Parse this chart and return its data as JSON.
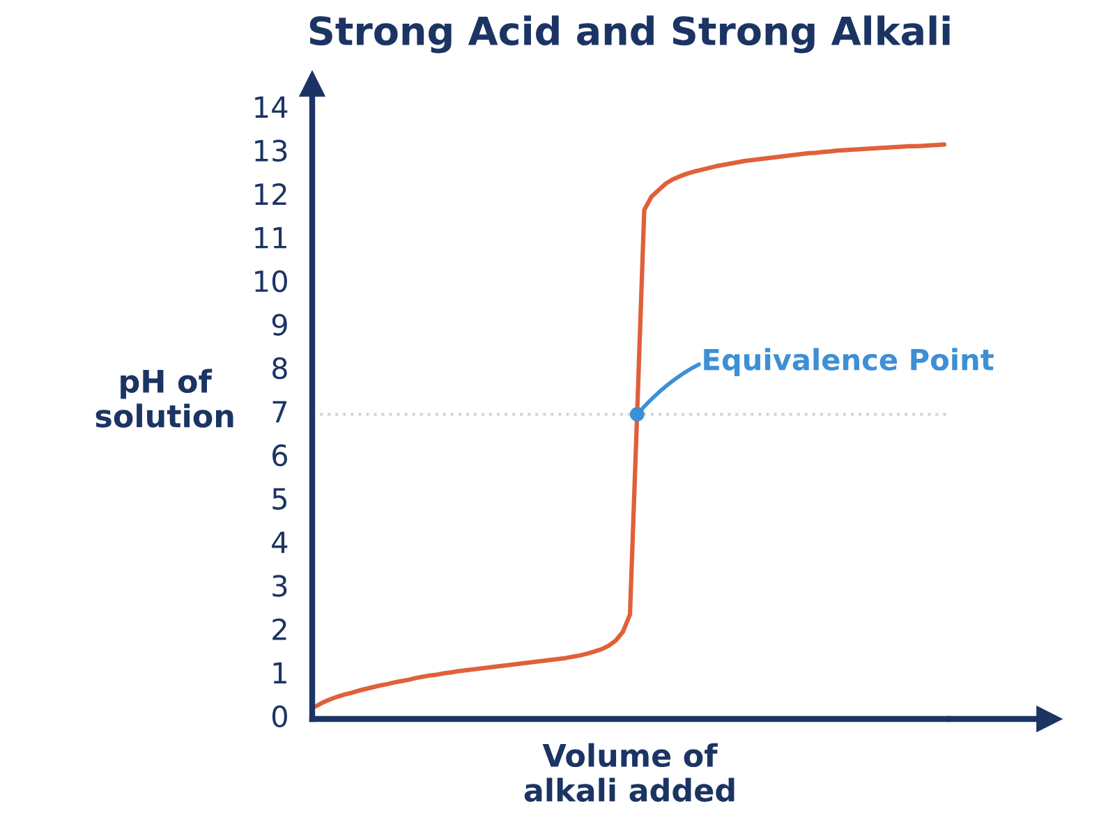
{
  "chart_data": {
    "type": "line",
    "title": "Strong Acid and Strong Alkali",
    "xlabel": "Volume of\nalkali added",
    "ylabel": "pH of\nsolution",
    "categories": [
      null,
      null,
      null,
      null,
      null,
      null,
      null,
      null,
      null,
      null,
      null,
      null,
      null,
      null,
      null,
      null,
      null,
      null,
      null,
      null,
      null,
      null,
      null,
      null,
      null,
      null,
      null,
      null,
      null,
      null,
      null,
      null,
      null,
      null,
      null,
      null,
      null,
      null,
      null,
      null,
      null,
      null,
      null,
      null,
      null,
      null,
      null,
      null,
      null,
      null,
      null,
      null,
      null,
      null,
      null,
      null,
      null,
      null,
      null,
      null,
      null,
      null,
      null,
      null,
      null,
      null,
      null,
      null,
      null,
      null,
      null,
      null,
      null,
      null,
      null,
      null,
      null,
      null,
      null,
      null,
      null,
      null,
      null,
      null,
      null,
      null,
      null,
      null,
      null
    ],
    "series": [
      {
        "color": "#e0603a",
        "values": [
          0.29,
          0.38,
          0.45,
          0.51,
          0.56,
          0.6,
          0.65,
          0.69,
          0.73,
          0.77,
          0.8,
          0.84,
          0.87,
          0.9,
          0.94,
          0.97,
          1.0,
          1.02,
          1.05,
          1.07,
          1.1,
          1.12,
          1.14,
          1.16,
          1.18,
          1.2,
          1.22,
          1.24,
          1.26,
          1.28,
          1.3,
          1.32,
          1.34,
          1.36,
          1.38,
          1.4,
          1.43,
          1.46,
          1.5,
          1.55,
          1.6,
          1.68,
          1.8,
          2.0,
          2.4,
          7,
          11.7,
          12.0,
          12.15,
          12.3,
          12.4,
          12.47,
          12.53,
          12.58,
          12.62,
          12.66,
          12.7,
          12.73,
          12.76,
          12.79,
          12.82,
          12.84,
          12.86,
          12.88,
          12.9,
          12.92,
          12.94,
          12.96,
          12.98,
          13.0,
          13.01,
          13.03,
          13.04,
          13.06,
          13.07,
          13.08,
          13.09,
          13.1,
          13.11,
          13.12,
          13.13,
          13.14,
          13.15,
          13.16,
          13.16,
          13.17,
          13.18,
          13.19,
          13.2
        ]
      }
    ],
    "ylim": [
      0,
      14.6
    ],
    "yticks": [
      0,
      1,
      2,
      3,
      4,
      5,
      6,
      7,
      8,
      9,
      10,
      11,
      12,
      13,
      14
    ],
    "tick_labels": "y",
    "grid": false,
    "marker": "none",
    "line_style": "solid",
    "annotations": [
      "Equivalence Point"
    ],
    "ref_lines": [
      {
        "axis": "y",
        "value": 7,
        "color": "#d0d4dc",
        "line_style": "dotted"
      }
    ]
  }
}
